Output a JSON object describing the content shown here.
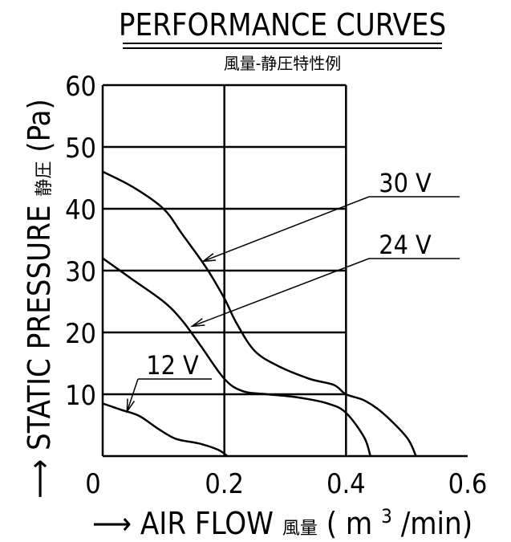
{
  "chart_data": {
    "type": "line",
    "title": "PERFORMANCE CURVES",
    "subtitle": "風量-静圧特性例",
    "xlabel": {
      "arrow": "⟶",
      "text": "AIR FLOW",
      "jp": "風量",
      "unit_open": "(",
      "unit_m": "m",
      "unit_exp": "3",
      "unit_rest": "/min)"
    },
    "ylabel": {
      "arrow": "⟶",
      "text": "STATIC PRESSURE",
      "jp": "静圧",
      "unit": "(Pa)"
    },
    "xlim": [
      0,
      0.6
    ],
    "ylim": [
      0,
      60
    ],
    "x_ticks": [
      0,
      0.2,
      0.4,
      0.6
    ],
    "x_tick_labels": [
      "0",
      "0.2",
      "0.4",
      "0.6"
    ],
    "y_ticks": [
      10,
      20,
      30,
      40,
      50,
      60
    ],
    "y_tick_labels": [
      "10",
      "20",
      "30",
      "40",
      "50",
      "60"
    ],
    "grid": true,
    "series": [
      {
        "name": "30 V",
        "x": [
          0,
          0.05,
          0.1,
          0.13,
          0.17,
          0.2,
          0.22,
          0.25,
          0.29,
          0.34,
          0.38,
          0.4,
          0.43,
          0.46,
          0.5,
          0.515
        ],
        "y": [
          46,
          43.5,
          40,
          36,
          30.5,
          25.5,
          21.5,
          17,
          14.5,
          12.5,
          11.5,
          10,
          9,
          7,
          3,
          0
        ]
      },
      {
        "name": "24 V",
        "x": [
          0,
          0.05,
          0.1,
          0.13,
          0.16,
          0.2,
          0.23,
          0.27,
          0.32,
          0.37,
          0.4,
          0.43,
          0.44
        ],
        "y": [
          32,
          28.5,
          25,
          22,
          18,
          12.5,
          10.5,
          10,
          9.5,
          8.5,
          7,
          3,
          0
        ]
      },
      {
        "name": "12 V",
        "x": [
          0,
          0.03,
          0.06,
          0.09,
          0.12,
          0.16,
          0.19,
          0.205
        ],
        "y": [
          8.5,
          7.5,
          6.5,
          4.5,
          2.8,
          2.0,
          1.0,
          0
        ]
      }
    ],
    "annotations": [
      {
        "label": "30 V",
        "target_series": "30 V"
      },
      {
        "label": "24 V",
        "target_series": "24 V"
      },
      {
        "label": "12 V",
        "target_series": "12 V"
      }
    ]
  }
}
